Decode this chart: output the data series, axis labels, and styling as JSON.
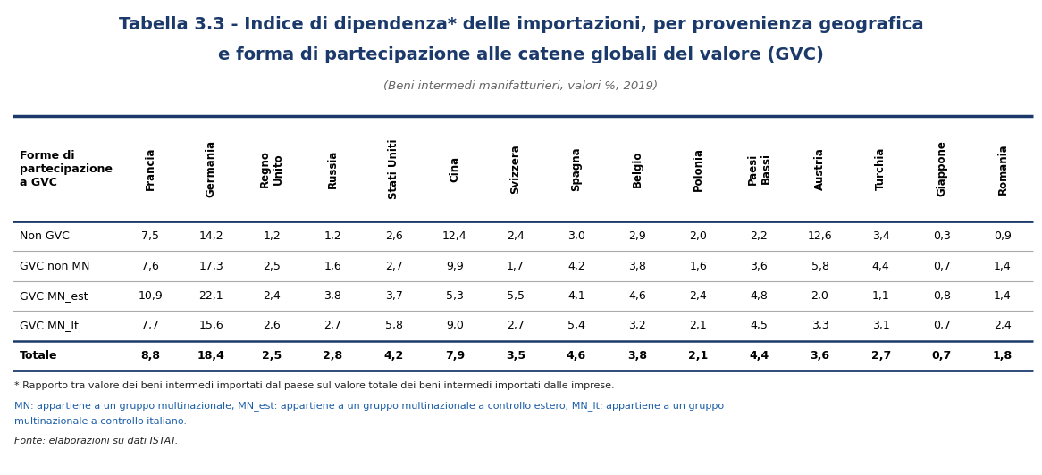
{
  "title_line1": "Tabella 3.3 - Indice di dipendenza* delle importazioni, per provenienza geografica",
  "title_line2": "e forma di partecipazione alle catene globali del valore (GVC)",
  "subtitle": "(Beni intermedi manifatturieri, valori %, 2019)",
  "col_header": "Forme di\npartecipazione\na GVC",
  "columns": [
    "Francia",
    "Germania",
    "Regno\nUnito",
    "Russia",
    "Stati Uniti",
    "Cina",
    "Svizzera",
    "Spagna",
    "Belgio",
    "Polonia",
    "Paesi\nBassi",
    "Austria",
    "Turchia",
    "Giappone",
    "Romania"
  ],
  "row_labels": [
    "Non GVC",
    "GVC non MN",
    "GVC MN_est",
    "GVC MN_It",
    "Totale"
  ],
  "data": [
    [
      "7,5",
      "14,2",
      "1,2",
      "1,2",
      "2,6",
      "12,4",
      "2,4",
      "3,0",
      "2,9",
      "2,0",
      "2,2",
      "12,6",
      "3,4",
      "0,3",
      "0,9"
    ],
    [
      "7,6",
      "17,3",
      "2,5",
      "1,6",
      "2,7",
      "9,9",
      "1,7",
      "4,2",
      "3,8",
      "1,6",
      "3,6",
      "5,8",
      "4,4",
      "0,7",
      "1,4"
    ],
    [
      "10,9",
      "22,1",
      "2,4",
      "3,8",
      "3,7",
      "5,3",
      "5,5",
      "4,1",
      "4,6",
      "2,4",
      "4,8",
      "2,0",
      "1,1",
      "0,8",
      "1,4"
    ],
    [
      "7,7",
      "15,6",
      "2,6",
      "2,7",
      "5,8",
      "9,0",
      "2,7",
      "5,4",
      "3,2",
      "2,1",
      "4,5",
      "3,3",
      "3,1",
      "0,7",
      "2,4"
    ],
    [
      "8,8",
      "18,4",
      "2,5",
      "2,8",
      "4,2",
      "7,9",
      "3,5",
      "4,6",
      "3,8",
      "2,1",
      "4,4",
      "3,6",
      "2,7",
      "0,7",
      "1,8"
    ]
  ],
  "footnote1": "* Rapporto tra valore dei beni intermedi importati dal paese sul valore totale dei beni intermedi importati dalle imprese.",
  "footnote2": "MN: appartiene a un gruppo multinazionale; MN_est: appartiene a un gruppo multinazionale a controllo estero; MN_It: appartiene a un gruppo",
  "footnote3": "multinazionale a controllo italiano.",
  "footnote4": "Fonte: elaborazioni su dati ISTAT.",
  "title_color": "#1b3a6b",
  "subtitle_color": "#666666",
  "dark_line_color": "#1b3a6b",
  "light_line_color": "#aaaaaa",
  "fn_black_color": "#222222",
  "fn_blue_color": "#1b5ea8",
  "fn_italic_color": "#555555"
}
